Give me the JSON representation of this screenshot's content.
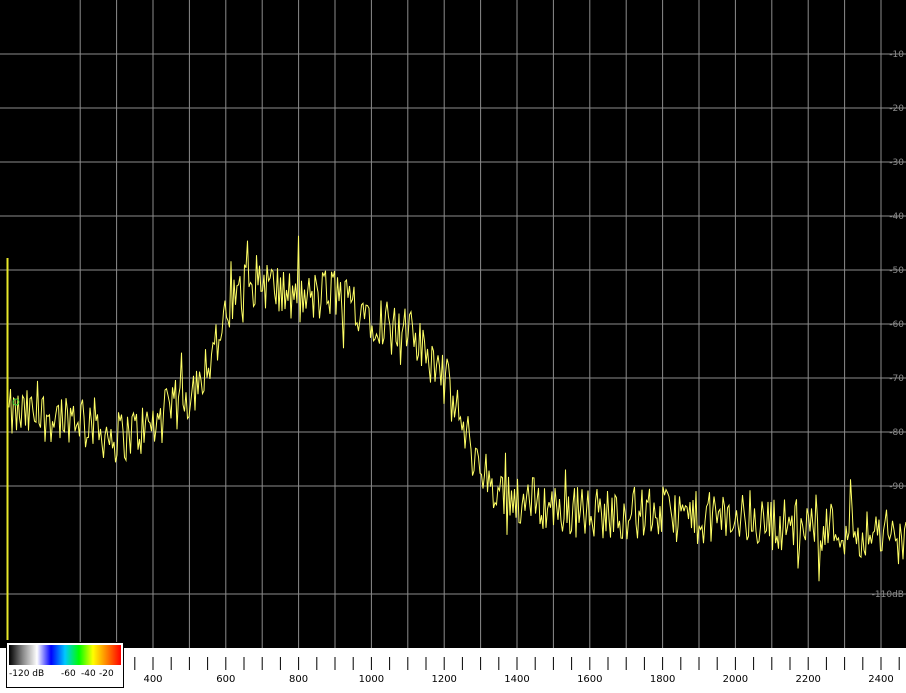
{
  "chart_data": {
    "type": "line",
    "xlabel": "",
    "ylabel": "",
    "x_ticks": [
      "400",
      "600",
      "800",
      "1000",
      "1200",
      "1400",
      "1600",
      "1800",
      "2000",
      "2200",
      "2400"
    ],
    "y_ticks": [
      "-10",
      "-20",
      "-30",
      "-40",
      "-50",
      "-60",
      "-70",
      "-80",
      "-90",
      "-110dB"
    ],
    "xlim": [
      200,
      2450
    ],
    "ylim": [
      -120,
      0
    ],
    "grid": true,
    "series": [
      {
        "color": "#ffff66",
        "x": [
          220,
          260,
          300,
          350,
          400,
          450,
          500,
          550,
          600,
          650,
          700,
          750,
          800,
          850,
          900,
          950,
          1000,
          1050,
          1100,
          1150,
          1200,
          1250,
          1300,
          1350,
          1400,
          1450,
          1500,
          1600,
          1700,
          1800,
          1900,
          2000,
          2100,
          2200,
          2300,
          2400,
          2450
        ],
        "y": [
          -77,
          -80,
          -81,
          -80,
          -79,
          -76,
          -73,
          -67,
          -60,
          -52,
          -52,
          -54,
          -56,
          -55,
          -54,
          -56,
          -58,
          -60,
          -62,
          -65,
          -70,
          -79,
          -87,
          -91,
          -92,
          -93,
          -94,
          -95,
          -95,
          -95,
          -96,
          -96,
          -97,
          -97,
          -98,
          -99,
          -100
        ]
      }
    ]
  },
  "colorbar": {
    "labels": [
      "-120 dB",
      "-60",
      "-40",
      "-20"
    ],
    "colors": [
      "#000000",
      "#8a8a8a",
      "#ffffff",
      "#0000ff",
      "#00c8ff",
      "#00ff00",
      "#ffff00",
      "#ff8000",
      "#ff0000"
    ]
  },
  "colors": {
    "background": "#000000",
    "grid": "#8c8c8c",
    "trace": "#ffff66",
    "edge_marker": "#e8e82a",
    "cursor_marker": "#33cc33"
  }
}
